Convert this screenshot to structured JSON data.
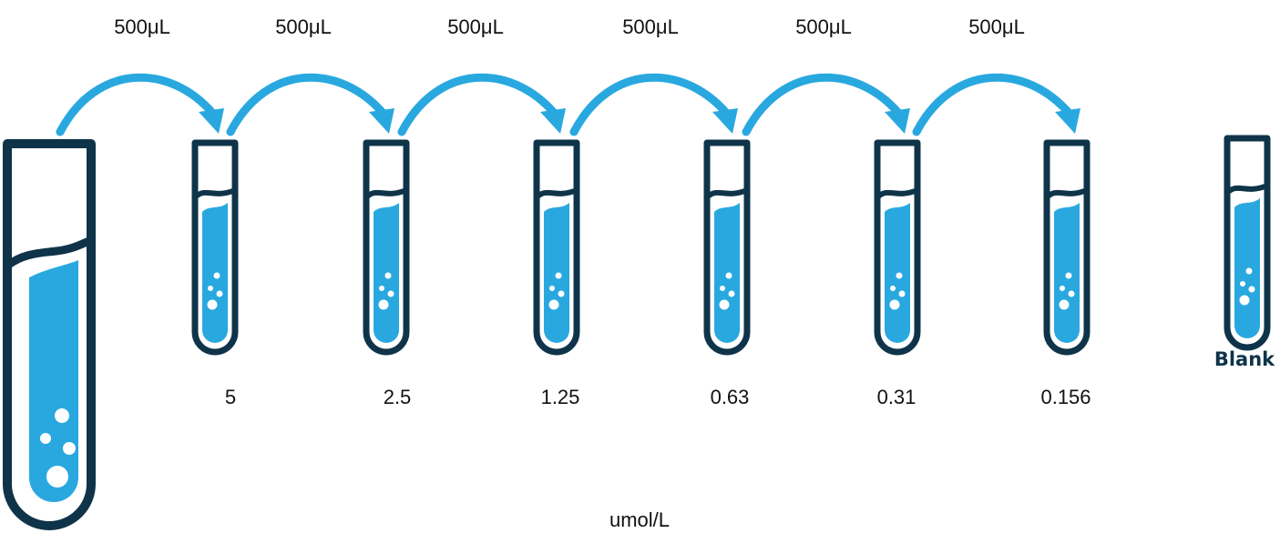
{
  "colors": {
    "outline": "#0f3449",
    "liquid": "#29a8e0",
    "arrow": "#29a8e0",
    "bubble": "#ffffff"
  },
  "transfers": [
    {
      "label": "500μL"
    },
    {
      "label": "500μL"
    },
    {
      "label": "500μL"
    },
    {
      "label": "500μL"
    },
    {
      "label": "500μL"
    },
    {
      "label": "500μL"
    }
  ],
  "dilutions": [
    {
      "concentration": "5"
    },
    {
      "concentration": "2.5"
    },
    {
      "concentration": "1.25"
    },
    {
      "concentration": "0.63"
    },
    {
      "concentration": "0.31"
    },
    {
      "concentration": "0.156"
    }
  ],
  "blank": {
    "label": "Blank"
  },
  "unit": "umol/L"
}
